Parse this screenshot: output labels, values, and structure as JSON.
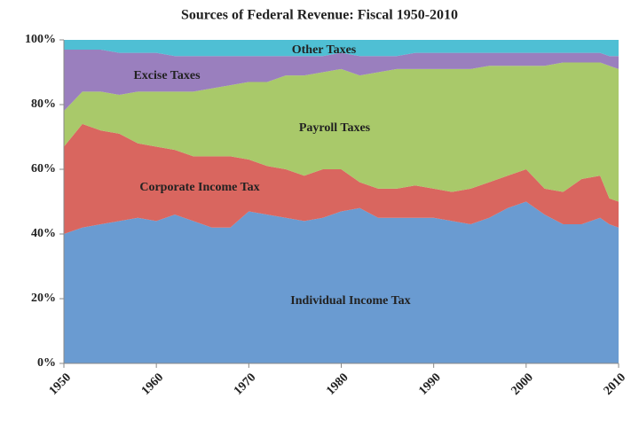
{
  "chart_data": {
    "type": "stacked_area",
    "title": "Sources of Federal Revenue:  Fiscal 1950-2010",
    "x": [
      1950,
      1952,
      1954,
      1956,
      1958,
      1960,
      1962,
      1964,
      1966,
      1968,
      1970,
      1972,
      1974,
      1976,
      1978,
      1980,
      1982,
      1984,
      1986,
      1988,
      1990,
      1992,
      1994,
      1996,
      1998,
      2000,
      2002,
      2004,
      2006,
      2008,
      2009,
      2010
    ],
    "series": [
      {
        "name": "Individual Income Tax",
        "color": "#6a9bd1",
        "values": [
          40,
          42,
          43,
          44,
          45,
          44,
          46,
          44,
          42,
          42,
          47,
          46,
          45,
          44,
          45,
          47,
          48,
          45,
          45,
          45,
          45,
          44,
          43,
          45,
          48,
          50,
          46,
          43,
          43,
          45,
          43,
          42
        ]
      },
      {
        "name": "Corporate Income Tax",
        "color": "#d9665f",
        "values": [
          27,
          32,
          29,
          27,
          23,
          23,
          20,
          20,
          22,
          22,
          16,
          15,
          15,
          14,
          15,
          13,
          8,
          9,
          9,
          10,
          9,
          9,
          11,
          11,
          10,
          10,
          8,
          10,
          14,
          13,
          8,
          8
        ]
      },
      {
        "name": "Payroll Taxes",
        "color": "#a9c96a",
        "values": [
          11,
          10,
          12,
          12,
          16,
          17,
          18,
          20,
          21,
          22,
          24,
          26,
          29,
          31,
          30,
          31,
          33,
          36,
          37,
          36,
          37,
          38,
          37,
          36,
          34,
          32,
          38,
          40,
          36,
          35,
          41,
          41
        ]
      },
      {
        "name": "Excise Taxes",
        "color": "#9a7fbe",
        "values": [
          19,
          13,
          13,
          13,
          12,
          12,
          11,
          11,
          10,
          9,
          8,
          8,
          6,
          6,
          5,
          5,
          6,
          5,
          4,
          5,
          5,
          5,
          5,
          4,
          4,
          4,
          4,
          3,
          3,
          3,
          3,
          4
        ]
      },
      {
        "name": "Other Taxes",
        "color": "#4fbfd4",
        "values": [
          3,
          3,
          3,
          4,
          4,
          4,
          5,
          5,
          5,
          5,
          5,
          5,
          5,
          5,
          5,
          4,
          5,
          5,
          5,
          4,
          4,
          4,
          4,
          4,
          4,
          4,
          4,
          4,
          4,
          4,
          5,
          5
        ]
      }
    ],
    "xlim": [
      1950,
      2010
    ],
    "xticks": [
      1950,
      1960,
      1970,
      1980,
      1990,
      2000,
      2010
    ],
    "ylim": [
      0,
      100
    ],
    "yticks": [
      {
        "value": 0,
        "label": "0%"
      },
      {
        "value": 20,
        "label": "20%"
      },
      {
        "value": 40,
        "label": "40%"
      },
      {
        "value": 60,
        "label": "60%"
      },
      {
        "value": 80,
        "label": "80%"
      },
      {
        "value": 100,
        "label": "100%"
      }
    ]
  }
}
